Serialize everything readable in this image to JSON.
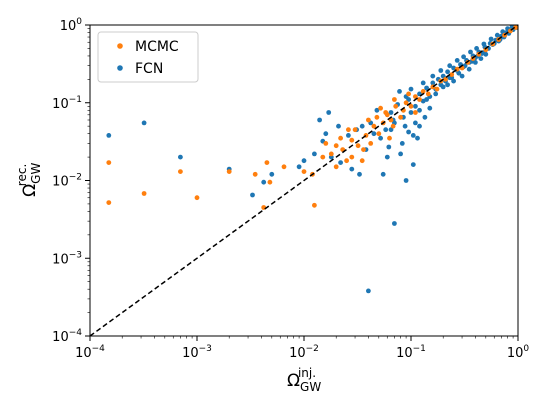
{
  "chart_data": {
    "type": "scatter",
    "xscale": "log",
    "yscale": "log",
    "xlim": [
      0.0001,
      1
    ],
    "ylim": [
      0.0001,
      1
    ],
    "xlabel": {
      "base": "Ω",
      "sub": "GW",
      "sup": "inj."
    },
    "ylabel": {
      "base": "Ω",
      "sub": "GW",
      "sup": "rec."
    },
    "xticks": [
      {
        "value": 0.0001,
        "base": "10",
        "exp": "−4"
      },
      {
        "value": 0.001,
        "base": "10",
        "exp": "−3"
      },
      {
        "value": 0.01,
        "base": "10",
        "exp": "−2"
      },
      {
        "value": 0.1,
        "base": "10",
        "exp": "−1"
      },
      {
        "value": 1,
        "base": "10",
        "exp": "0"
      }
    ],
    "yticks": [
      {
        "value": 0.0001,
        "base": "10",
        "exp": "−4"
      },
      {
        "value": 0.001,
        "base": "10",
        "exp": "−3"
      },
      {
        "value": 0.01,
        "base": "10",
        "exp": "−2"
      },
      {
        "value": 0.1,
        "base": "10",
        "exp": "−1"
      },
      {
        "value": 1,
        "base": "10",
        "exp": "0"
      }
    ],
    "legend_position": "top-left",
    "reference_line": {
      "style": "dashed",
      "color": "#000000",
      "from": [
        0.0001,
        0.0001
      ],
      "to": [
        1,
        1
      ]
    },
    "series": [
      {
        "name": "FCN",
        "color": "#1f77b4",
        "points": [
          [
            0.00015,
            0.038
          ],
          [
            0.00032,
            0.055
          ],
          [
            0.0007,
            0.02
          ],
          [
            0.002,
            0.014
          ],
          [
            0.0033,
            0.0065
          ],
          [
            0.005,
            0.012
          ],
          [
            0.009,
            0.015
          ],
          [
            0.0125,
            0.022
          ],
          [
            0.014,
            0.06
          ],
          [
            0.015,
            0.032
          ],
          [
            0.017,
            0.075
          ],
          [
            0.022,
            0.017
          ],
          [
            0.028,
            0.014
          ],
          [
            0.033,
            0.012
          ],
          [
            0.038,
            0.025
          ],
          [
            0.04,
            0.00038
          ],
          [
            0.045,
            0.04
          ],
          [
            0.048,
            0.08
          ],
          [
            0.052,
            0.035
          ],
          [
            0.055,
            0.012
          ],
          [
            0.06,
            0.02
          ],
          [
            0.065,
            0.045
          ],
          [
            0.068,
            0.06
          ],
          [
            0.07,
            0.0028
          ],
          [
            0.075,
            0.095
          ],
          [
            0.078,
            0.14
          ],
          [
            0.083,
            0.03
          ],
          [
            0.088,
            0.05
          ],
          [
            0.09,
            0.01
          ],
          [
            0.095,
            0.11
          ],
          [
            0.1,
            0.075
          ],
          [
            0.105,
            0.016
          ],
          [
            0.11,
            0.09
          ],
          [
            0.115,
            0.035
          ],
          [
            0.12,
            0.13
          ],
          [
            0.13,
            0.105
          ],
          [
            0.14,
            0.155
          ],
          [
            0.15,
            0.12
          ],
          [
            0.16,
            0.18
          ],
          [
            0.17,
            0.15
          ],
          [
            0.18,
            0.2
          ],
          [
            0.19,
            0.17
          ],
          [
            0.2,
            0.22
          ],
          [
            0.21,
            0.19
          ],
          [
            0.22,
            0.25
          ],
          [
            0.23,
            0.21
          ],
          [
            0.25,
            0.28
          ],
          [
            0.27,
            0.26
          ],
          [
            0.29,
            0.31
          ],
          [
            0.31,
            0.29
          ],
          [
            0.33,
            0.35
          ],
          [
            0.35,
            0.33
          ],
          [
            0.38,
            0.4
          ],
          [
            0.4,
            0.38
          ],
          [
            0.43,
            0.45
          ],
          [
            0.46,
            0.43
          ],
          [
            0.49,
            0.52
          ],
          [
            0.52,
            0.5
          ],
          [
            0.55,
            0.58
          ],
          [
            0.58,
            0.56
          ],
          [
            0.62,
            0.64
          ],
          [
            0.66,
            0.62
          ],
          [
            0.7,
            0.72
          ],
          [
            0.74,
            0.7
          ],
          [
            0.78,
            0.8
          ],
          [
            0.82,
            0.78
          ],
          [
            0.86,
            0.88
          ],
          [
            0.9,
            0.87
          ],
          [
            0.94,
            0.95
          ],
          [
            0.97,
            0.93
          ],
          [
            0.99,
            0.99
          ],
          [
            0.12,
            0.08
          ],
          [
            0.14,
            0.11
          ],
          [
            0.17,
            0.13
          ],
          [
            0.2,
            0.16
          ],
          [
            0.24,
            0.21
          ],
          [
            0.28,
            0.24
          ],
          [
            0.32,
            0.3
          ],
          [
            0.37,
            0.34
          ],
          [
            0.42,
            0.4
          ],
          [
            0.47,
            0.44
          ],
          [
            0.53,
            0.5
          ],
          [
            0.6,
            0.58
          ],
          [
            0.68,
            0.65
          ],
          [
            0.75,
            0.73
          ],
          [
            0.1,
            0.15
          ],
          [
            0.13,
            0.18
          ],
          [
            0.16,
            0.22
          ],
          [
            0.19,
            0.26
          ],
          [
            0.23,
            0.3
          ],
          [
            0.27,
            0.35
          ],
          [
            0.31,
            0.39
          ],
          [
            0.36,
            0.45
          ],
          [
            0.41,
            0.5
          ],
          [
            0.48,
            0.57
          ],
          [
            0.56,
            0.66
          ],
          [
            0.64,
            0.74
          ],
          [
            0.72,
            0.82
          ],
          [
            0.8,
            0.9
          ],
          [
            0.88,
            0.97
          ],
          [
            0.3,
            0.22
          ],
          [
            0.35,
            0.27
          ],
          [
            0.4,
            0.33
          ],
          [
            0.45,
            0.37
          ],
          [
            0.5,
            0.42
          ],
          [
            0.25,
            0.19
          ],
          [
            0.22,
            0.17
          ],
          [
            0.09,
            0.12
          ],
          [
            0.085,
            0.065
          ],
          [
            0.07,
            0.055
          ],
          [
            0.065,
            0.075
          ],
          [
            0.058,
            0.045
          ],
          [
            0.11,
            0.055
          ],
          [
            0.062,
            0.027
          ],
          [
            0.08,
            0.022
          ],
          [
            0.095,
            0.042
          ],
          [
            0.105,
            0.038
          ],
          [
            0.12,
            0.05
          ],
          [
            0.135,
            0.065
          ],
          [
            0.15,
            0.085
          ],
          [
            0.042,
            0.055
          ],
          [
            0.035,
            0.05
          ],
          [
            0.031,
            0.045
          ],
          [
            0.026,
            0.038
          ],
          [
            0.021,
            0.05
          ],
          [
            0.018,
            0.02
          ],
          [
            0.016,
            0.04
          ],
          [
            0.01,
            0.018
          ],
          [
            0.0042,
            0.0095
          ]
        ]
      },
      {
        "name": "MCMC",
        "color": "#ff7f0e",
        "points": [
          [
            0.00015,
            0.017
          ],
          [
            0.00015,
            0.0052
          ],
          [
            0.00032,
            0.0068
          ],
          [
            0.0007,
            0.013
          ],
          [
            0.001,
            0.006
          ],
          [
            0.002,
            0.013
          ],
          [
            0.0035,
            0.012
          ],
          [
            0.0042,
            0.0045
          ],
          [
            0.0045,
            0.017
          ],
          [
            0.0048,
            0.0095
          ],
          [
            0.0065,
            0.015
          ],
          [
            0.01,
            0.013
          ],
          [
            0.012,
            0.012
          ],
          [
            0.0125,
            0.0048
          ],
          [
            0.015,
            0.02
          ],
          [
            0.016,
            0.03
          ],
          [
            0.018,
            0.022
          ],
          [
            0.02,
            0.028
          ],
          [
            0.022,
            0.035
          ],
          [
            0.023,
            0.025
          ],
          [
            0.025,
            0.018
          ],
          [
            0.028,
            0.033
          ],
          [
            0.03,
            0.045
          ],
          [
            0.032,
            0.028
          ],
          [
            0.035,
            0.018
          ],
          [
            0.038,
            0.038
          ],
          [
            0.04,
            0.06
          ],
          [
            0.042,
            0.03
          ],
          [
            0.045,
            0.05
          ],
          [
            0.05,
            0.04
          ],
          [
            0.055,
            0.055
          ],
          [
            0.06,
            0.07
          ],
          [
            0.063,
            0.035
          ],
          [
            0.068,
            0.05
          ],
          [
            0.072,
            0.09
          ],
          [
            0.08,
            0.065
          ],
          [
            0.085,
            0.08
          ],
          [
            0.09,
            0.1
          ],
          [
            0.1,
            0.09
          ],
          [
            0.11,
            0.12
          ],
          [
            0.12,
            0.11
          ],
          [
            0.13,
            0.14
          ],
          [
            0.145,
            0.13
          ],
          [
            0.16,
            0.16
          ],
          [
            0.175,
            0.15
          ],
          [
            0.19,
            0.19
          ],
          [
            0.21,
            0.2
          ],
          [
            0.24,
            0.23
          ],
          [
            0.27,
            0.27
          ],
          [
            0.3,
            0.28
          ],
          [
            0.34,
            0.33
          ],
          [
            0.38,
            0.37
          ],
          [
            0.43,
            0.42
          ],
          [
            0.5,
            0.48
          ],
          [
            0.58,
            0.57
          ],
          [
            0.66,
            0.65
          ],
          [
            0.75,
            0.74
          ],
          [
            0.85,
            0.84
          ],
          [
            0.95,
            0.93
          ],
          [
            0.07,
            0.11
          ],
          [
            0.058,
            0.075
          ],
          [
            0.048,
            0.065
          ],
          [
            0.052,
            0.085
          ],
          [
            0.095,
            0.13
          ],
          [
            0.028,
            0.02
          ],
          [
            0.02,
            0.015
          ],
          [
            0.065,
            0.06
          ],
          [
            0.11,
            0.075
          ],
          [
            0.026,
            0.045
          ],
          [
            0.036,
            0.025
          ]
        ]
      }
    ]
  }
}
